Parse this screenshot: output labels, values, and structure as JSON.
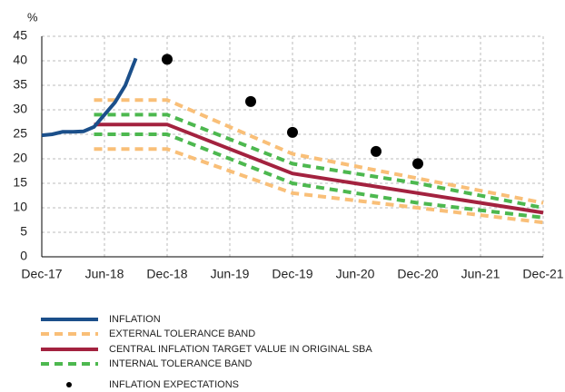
{
  "chart_data": {
    "type": "line",
    "y_label": "%",
    "xlim": [
      "Dec-17",
      "Dec-21"
    ],
    "xticks": [
      "Dec-17",
      "Jun-18",
      "Dec-18",
      "Jun-19",
      "Dec-19",
      "Jun-20",
      "Dec-20",
      "Jun-21",
      "Dec-21"
    ],
    "ylim": [
      0,
      45
    ],
    "yticks": [
      0,
      5,
      10,
      15,
      20,
      25,
      30,
      35,
      40,
      45
    ],
    "grid": true,
    "legend": "bottom",
    "series": [
      {
        "name": "INFLATION",
        "color": "#1b4f8a",
        "dashed": false,
        "x": [
          "Dec-17",
          "Jan-18",
          "Feb-18",
          "Mar-18",
          "Apr-18",
          "May-18",
          "Jun-18",
          "Jul-18",
          "Aug-18",
          "Sep-18"
        ],
        "values": [
          24.8,
          25.0,
          25.5,
          25.5,
          25.6,
          26.5,
          29.0,
          31.5,
          35.0,
          40.5
        ]
      },
      {
        "name": "EXTERNAL TOLERANCE BAND",
        "color": "#f9bf78",
        "dashed": true,
        "x": [
          "May-18",
          "Dec-18",
          "Dec-19",
          "Dec-20",
          "Dec-21"
        ],
        "upper": [
          32,
          32,
          21,
          16,
          11
        ],
        "lower": [
          22,
          22,
          13,
          10,
          7
        ]
      },
      {
        "name": "CENTRAL INFLATION TARGET VALUE IN ORIGINAL SBA",
        "color": "#a3223f",
        "dashed": false,
        "x": [
          "May-18",
          "Dec-18",
          "Dec-19",
          "Dec-20",
          "Dec-21"
        ],
        "values": [
          27,
          27,
          17,
          13,
          9
        ]
      },
      {
        "name": "INTERNAL TOLERANCE BAND",
        "color": "#4db84f",
        "dashed": true,
        "x": [
          "May-18",
          "Dec-18",
          "Dec-19",
          "Dec-20",
          "Dec-21"
        ],
        "upper": [
          29,
          29,
          19,
          15,
          10
        ],
        "lower": [
          25,
          25,
          15,
          11,
          8
        ]
      },
      {
        "name": "INFLATION EXPECTATIONS",
        "color": "#000000",
        "marker": "dot",
        "x": [
          "Dec-18",
          "Aug-19",
          "Dec-19",
          "Aug-20",
          "Dec-20"
        ],
        "values": [
          40.3,
          31.7,
          25.4,
          21.5,
          19.0
        ]
      }
    ]
  }
}
